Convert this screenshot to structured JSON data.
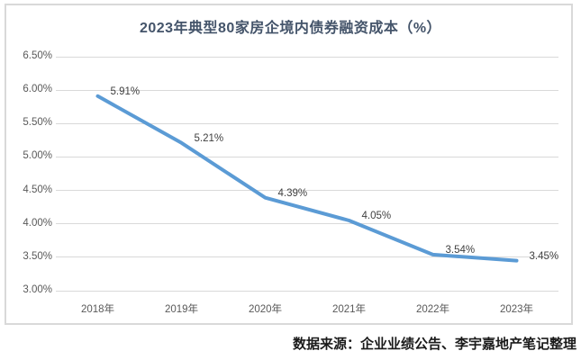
{
  "title": "2023年典型80家房企境内债券融资成本（%）",
  "source_note": "数据来源：企业业绩公告、李宇嘉地产笔记整理",
  "colors": {
    "line": "#5b9bd5",
    "gridline": "#d9d9d9",
    "frame_border": "#d9d9d9",
    "tick_text": "#595959",
    "data_label_text": "#404040",
    "title_text": "#44546a",
    "source_text": "#1a1a1a"
  },
  "chart_data": {
    "type": "line",
    "title": "2023年典型80家房企境内债券融资成本（%）",
    "categories": [
      "2018年",
      "2019年",
      "2020年",
      "2021年",
      "2022年",
      "2023年"
    ],
    "series": [
      {
        "name": "境内债券融资成本",
        "values": [
          5.91,
          5.21,
          4.39,
          4.05,
          3.54,
          3.45
        ],
        "color": "#5b9bd5"
      }
    ],
    "data_labels": [
      "5.91%",
      "5.21%",
      "4.39%",
      "4.05%",
      "3.54%",
      "3.45%"
    ],
    "xlabel": "",
    "ylabel": "",
    "ylim": [
      3.0,
      6.5
    ],
    "y_tick_step": 0.5,
    "y_ticks": [
      {
        "value": 6.5,
        "label": "6.50%"
      },
      {
        "value": 6.0,
        "label": "6.00%"
      },
      {
        "value": 5.5,
        "label": "5.50%"
      },
      {
        "value": 5.0,
        "label": "5.00%"
      },
      {
        "value": 4.5,
        "label": "4.50%"
      },
      {
        "value": 4.0,
        "label": "4.00%"
      },
      {
        "value": 3.5,
        "label": "3.50%"
      },
      {
        "value": 3.0,
        "label": "3.00%"
      }
    ],
    "grid": true,
    "legend": "none",
    "markers": false
  }
}
